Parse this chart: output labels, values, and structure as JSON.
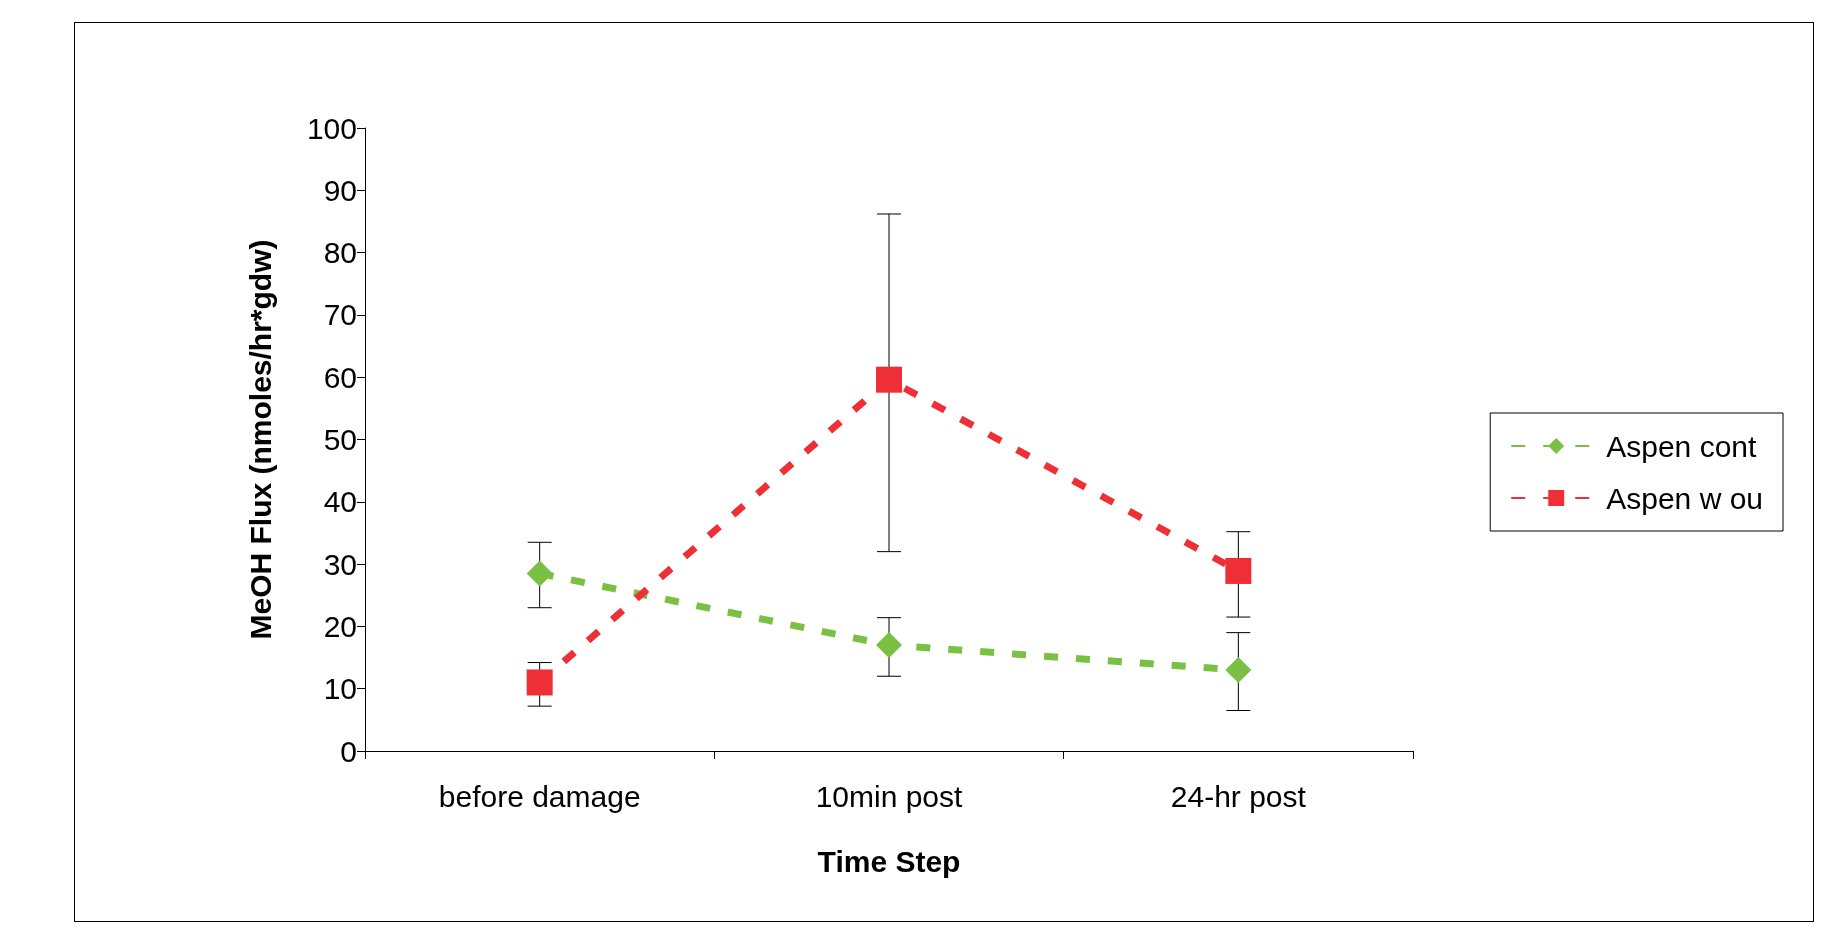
{
  "chart_data": {
    "type": "line",
    "xlabel": "Time Step",
    "ylabel": "MeOH Flux (nmoles/hr*gdw)",
    "categories": [
      "before damage",
      "10min post",
      "24-hr post"
    ],
    "series": [
      {
        "name": "Aspen cont",
        "color": "#7ac143",
        "marker": "diamond",
        "values": [
          28.5,
          17,
          13
        ],
        "errors": [
          [
            23,
            33.5
          ],
          [
            12,
            21.4
          ],
          [
            6.5,
            19
          ]
        ]
      },
      {
        "name": "Aspen w ou",
        "color": "#ee3036",
        "marker": "square",
        "values": [
          11,
          59.6,
          28.9
        ],
        "errors": [
          [
            7.2,
            14.2
          ],
          [
            32,
            86.2
          ],
          [
            21.5,
            35.2
          ]
        ]
      }
    ],
    "ylim": [
      0,
      100
    ],
    "yticks": [
      0,
      10,
      20,
      30,
      40,
      50,
      60,
      70,
      80,
      90,
      100
    ],
    "grid": false,
    "legend": "right",
    "line_style": "dashed"
  }
}
